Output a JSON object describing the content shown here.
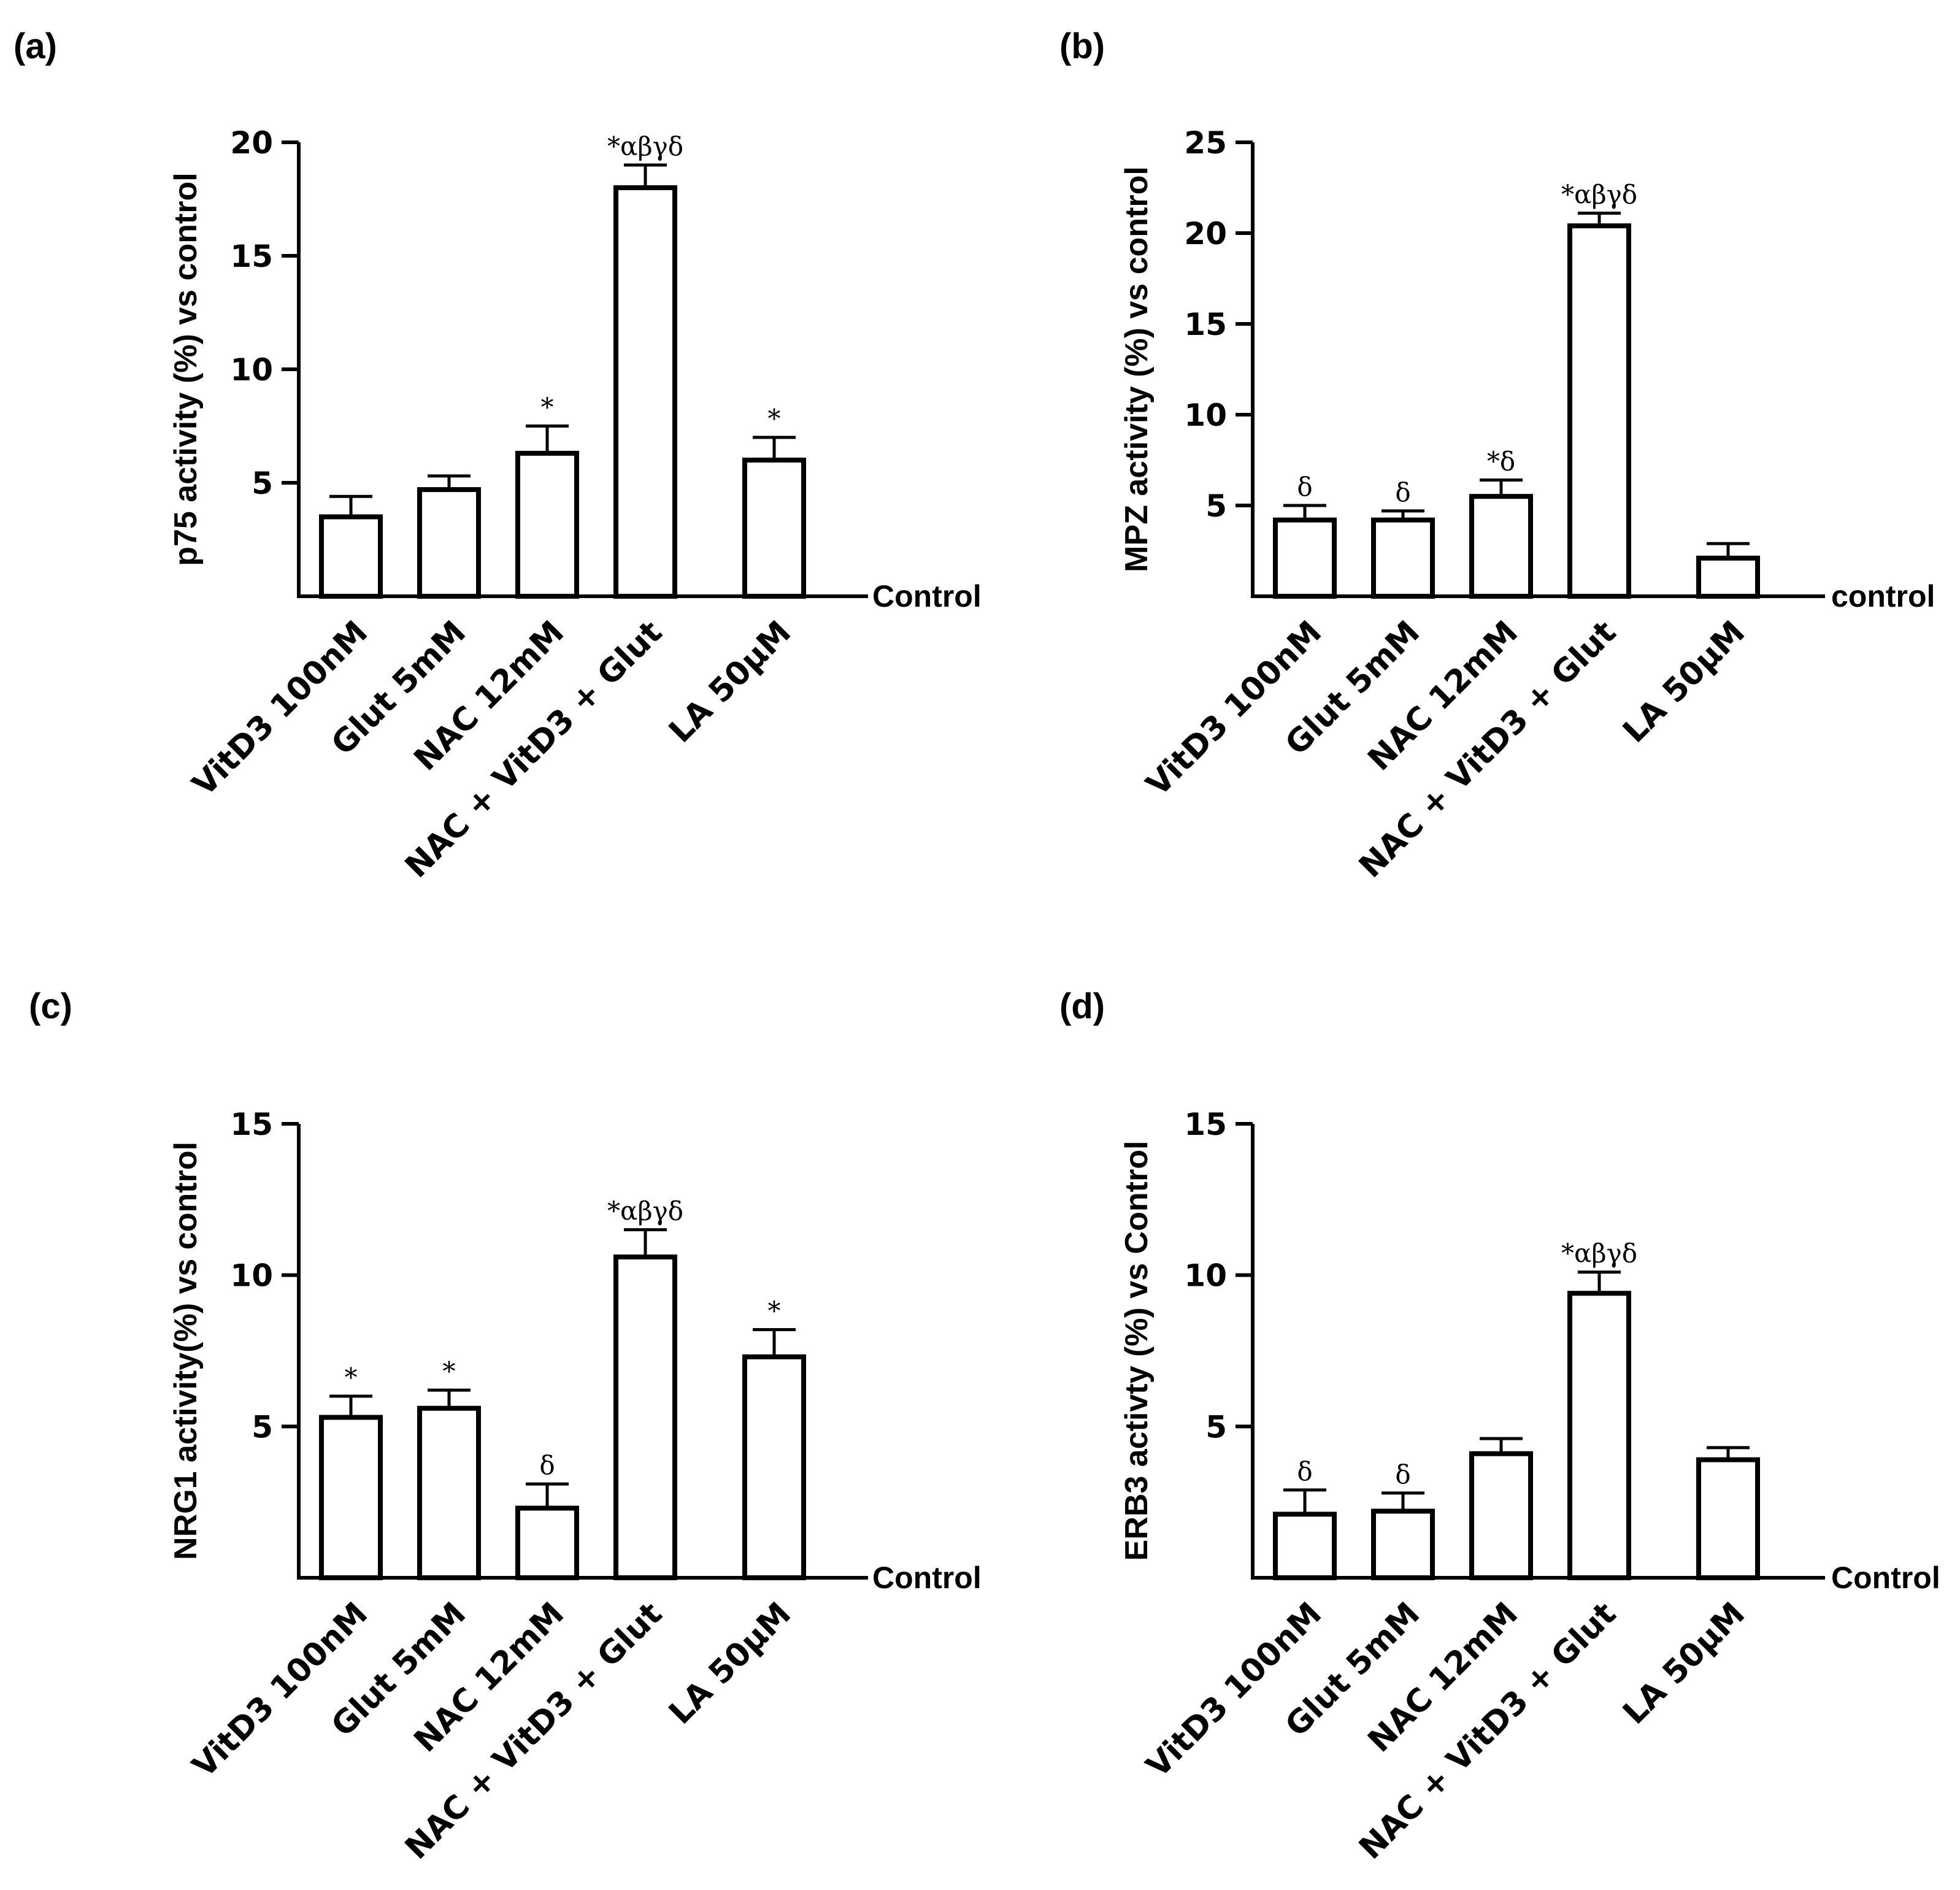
{
  "chart_data": [
    {
      "type": "bar",
      "panel": "(a)",
      "ylabel": "p75 activity (%) vs control",
      "baseline_label": "Control",
      "ylim": [
        0,
        20
      ],
      "yticks": [
        "5",
        "10",
        "15",
        "20"
      ],
      "categories": [
        "VitD3 100nM",
        "Glut 5mM",
        "NAC 12mM",
        "NAC + VitD3 + Glut",
        "LA 50µM"
      ],
      "values": [
        3.5,
        4.7,
        6.3,
        18.0,
        6.0
      ],
      "errors": [
        0.9,
        0.6,
        1.2,
        1.0,
        1.0
      ],
      "annotations": [
        "",
        "",
        "*",
        "*αβγδ",
        "*"
      ]
    },
    {
      "type": "bar",
      "panel": "(b)",
      "ylabel": "MPZ activity (%) vs control",
      "baseline_label": "control",
      "ylim": [
        0,
        25
      ],
      "yticks": [
        "5",
        "10",
        "15",
        "20",
        "25"
      ],
      "categories": [
        "VitD3 100nM",
        "Glut 5mM",
        "NAC 12mM",
        "NAC + VitD3 + Glut",
        "LA 50µM"
      ],
      "values": [
        4.2,
        4.2,
        5.5,
        20.4,
        2.1
      ],
      "errors": [
        0.8,
        0.5,
        0.9,
        0.7,
        0.8
      ],
      "annotations": [
        "δ",
        "δ",
        "*δ",
        "*αβγδ",
        ""
      ]
    },
    {
      "type": "bar",
      "panel": "(c)",
      "ylabel": "NRG1 activity(%) vs control",
      "baseline_label": "Control",
      "ylim": [
        0,
        15
      ],
      "yticks": [
        "5",
        "10",
        "15"
      ],
      "categories": [
        "VitD3 100nM",
        "Glut 5mM",
        "NAC 12mM",
        "NAC + VitD3 + Glut",
        "LA 50µM"
      ],
      "values": [
        5.3,
        5.6,
        2.3,
        10.6,
        7.3
      ],
      "errors": [
        0.7,
        0.6,
        0.8,
        0.9,
        0.9
      ],
      "annotations": [
        "*",
        "*",
        "δ",
        "*αβγδ",
        "*"
      ]
    },
    {
      "type": "bar",
      "panel": "(d)",
      "ylabel": "ERB3 activty (%) vs Control",
      "baseline_label": "Control",
      "ylim": [
        0,
        15
      ],
      "yticks": [
        "5",
        "10",
        "15"
      ],
      "categories": [
        "VitD3 100nM",
        "Glut 5mM",
        "NAC 12mM",
        "NAC + VitD3 + Glut",
        "LA 50µM"
      ],
      "values": [
        2.1,
        2.2,
        4.1,
        9.4,
        3.9
      ],
      "errors": [
        0.8,
        0.6,
        0.5,
        0.7,
        0.4
      ],
      "annotations": [
        "δ",
        "δ",
        "",
        "*αβγδ",
        ""
      ]
    }
  ]
}
